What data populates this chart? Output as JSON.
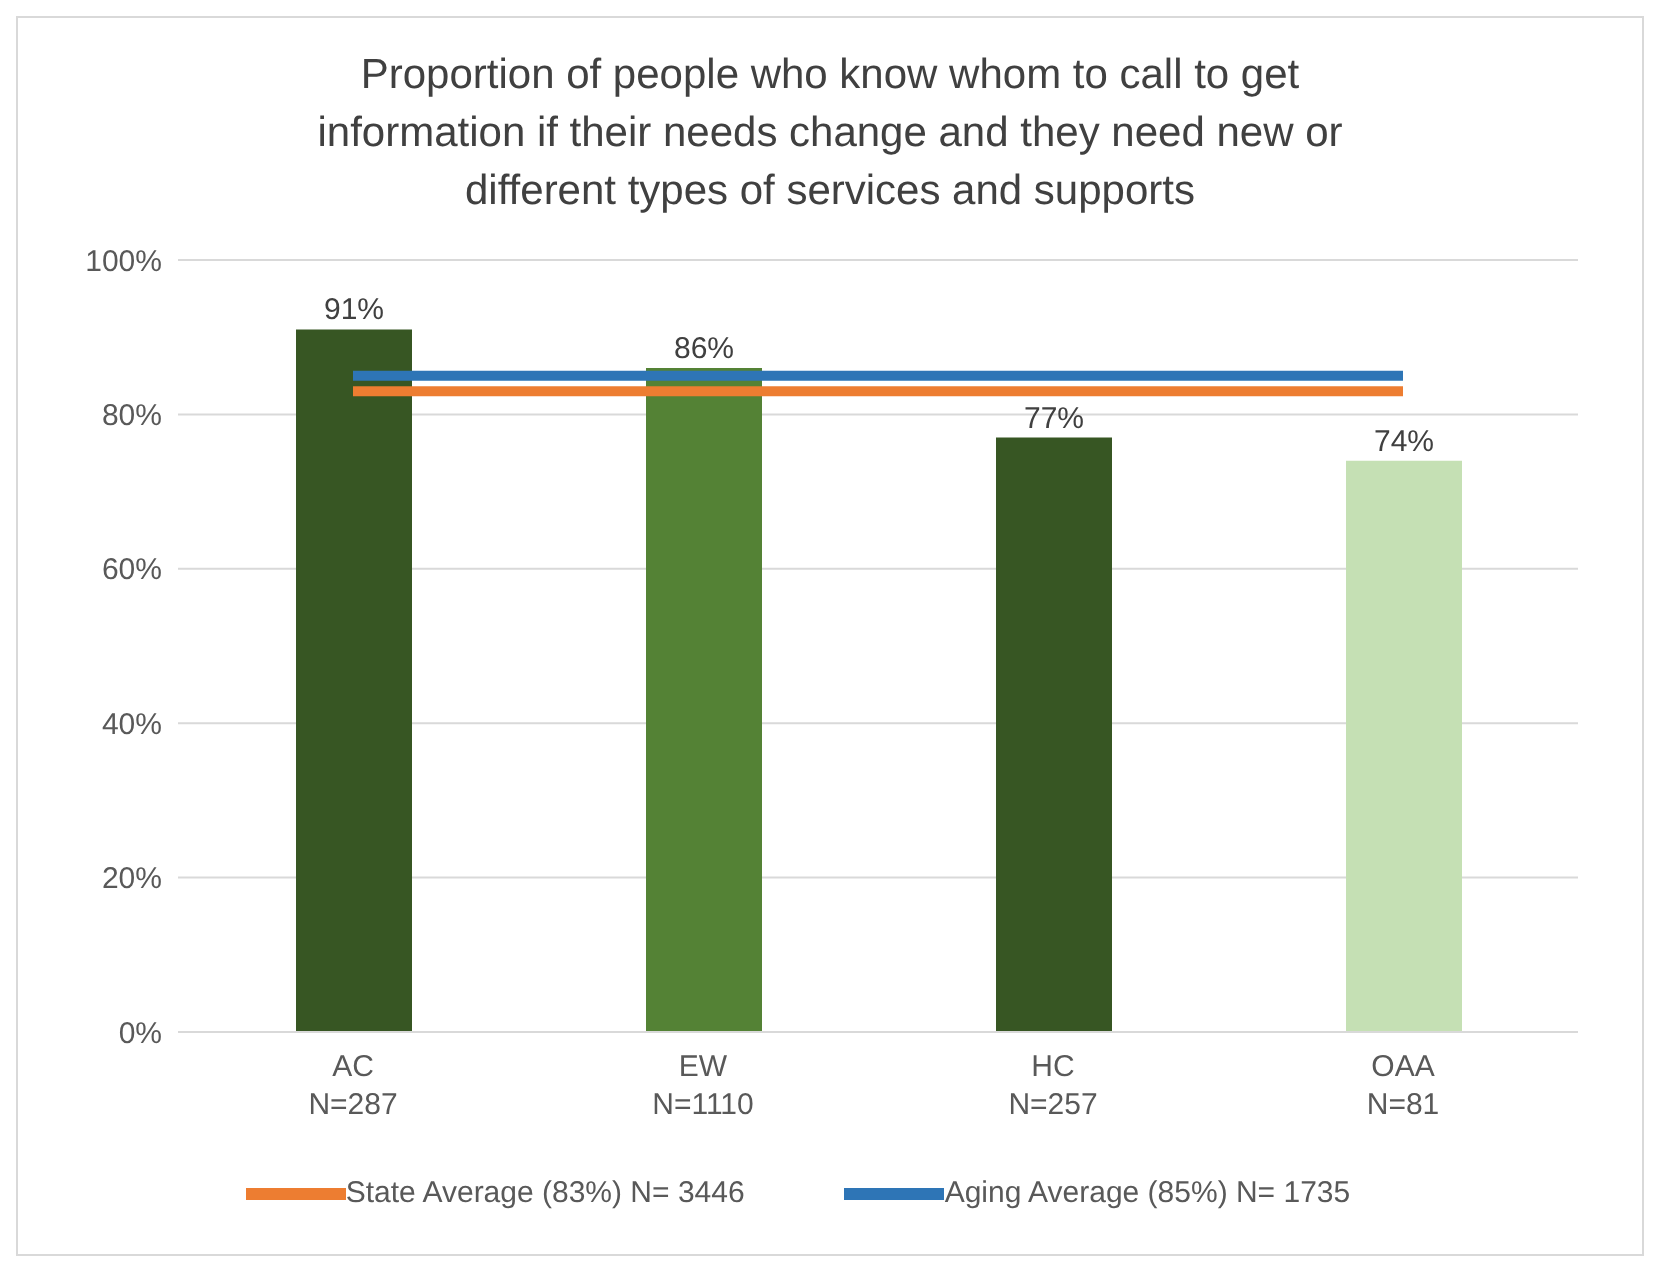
{
  "chart_data": {
    "type": "bar",
    "title": "Proportion of people who know whom to call to get information if their needs change and they need new or different types of services and supports",
    "categories": [
      "AC\nN=287",
      "EW\nN=1110",
      "HC\nN=257",
      "OAA\nN=81"
    ],
    "values": [
      91,
      86,
      77,
      74
    ],
    "colors": [
      "#375623",
      "#548235",
      "#375623",
      "#c5e0b4"
    ],
    "value_labels": [
      "91%",
      "86%",
      "77%",
      "74%"
    ],
    "series": [
      {
        "type": "line",
        "name": "State Average (83%) N= 3446",
        "color": "#ed7d31",
        "values": [
          83,
          83,
          83,
          83
        ]
      },
      {
        "type": "line",
        "name": "Aging Average (85%) N= 1735",
        "color": "#2e75b6",
        "values": [
          85,
          85,
          85,
          85
        ]
      }
    ],
    "ylim": [
      0,
      100
    ],
    "yticks": [
      {
        "value": 0,
        "label": "0%"
      },
      {
        "value": 20,
        "label": "20%"
      },
      {
        "value": 40,
        "label": "40%"
      },
      {
        "value": 60,
        "label": "60%"
      },
      {
        "value": 80,
        "label": "80%"
      },
      {
        "value": 100,
        "label": "100%"
      }
    ],
    "grid": "y",
    "legend": "bottom",
    "marker": "none",
    "line_style": "solid"
  }
}
